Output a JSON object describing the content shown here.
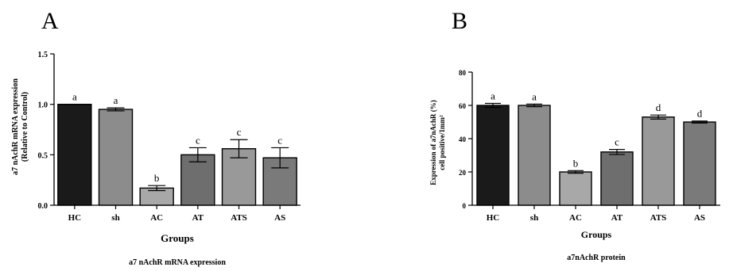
{
  "chart_data": [
    {
      "panel_label": "A",
      "type": "bar",
      "title": "a7 nAchR mRNA expression",
      "xlabel": "Groups",
      "ylabel": [
        "a7 nAchR mRNA expression",
        "(Relative to Control)"
      ],
      "ylim": [
        0,
        1.5
      ],
      "yticks": [
        0.0,
        0.5,
        1.0,
        1.5
      ],
      "ytick_labels": [
        "0.0",
        "0.5",
        "1.0",
        "1.5"
      ],
      "categories": [
        "HC",
        "sh",
        "AC",
        "AT",
        "ATS",
        "AS"
      ],
      "values": [
        1.0,
        0.95,
        0.17,
        0.5,
        0.56,
        0.47
      ],
      "errors": [
        0.0,
        0.015,
        0.025,
        0.07,
        0.09,
        0.1
      ],
      "significance": [
        "a",
        "a",
        "b",
        "c",
        "c",
        "c"
      ],
      "colors": [
        "#1a1a1a",
        "#8c8c8c",
        "#a8a8a8",
        "#6e6e6e",
        "#999999",
        "#7a7a7a"
      ],
      "grid": false,
      "legend": "none"
    },
    {
      "panel_label": "B",
      "type": "bar",
      "title": "a7nAchR protein",
      "xlabel": "Groups",
      "ylabel": [
        "Expression of a7nAchR (%)",
        "cell positive/1mm²"
      ],
      "ylim": [
        0,
        80
      ],
      "yticks": [
        0,
        20,
        40,
        60,
        80
      ],
      "ytick_labels": [
        "0",
        "20",
        "40",
        "60",
        "80"
      ],
      "categories": [
        "HC",
        "sh",
        "AC",
        "AT",
        "ATS",
        "AS"
      ],
      "values": [
        60,
        60,
        20,
        32,
        53,
        50
      ],
      "errors": [
        1.2,
        0.8,
        0.8,
        1.5,
        1.2,
        0.6
      ],
      "significance": [
        "a",
        "a",
        "b",
        "c",
        "d",
        "d"
      ],
      "colors": [
        "#1a1a1a",
        "#8c8c8c",
        "#a8a8a8",
        "#6e6e6e",
        "#999999",
        "#7a7a7a"
      ],
      "grid": false,
      "legend": "none"
    }
  ]
}
